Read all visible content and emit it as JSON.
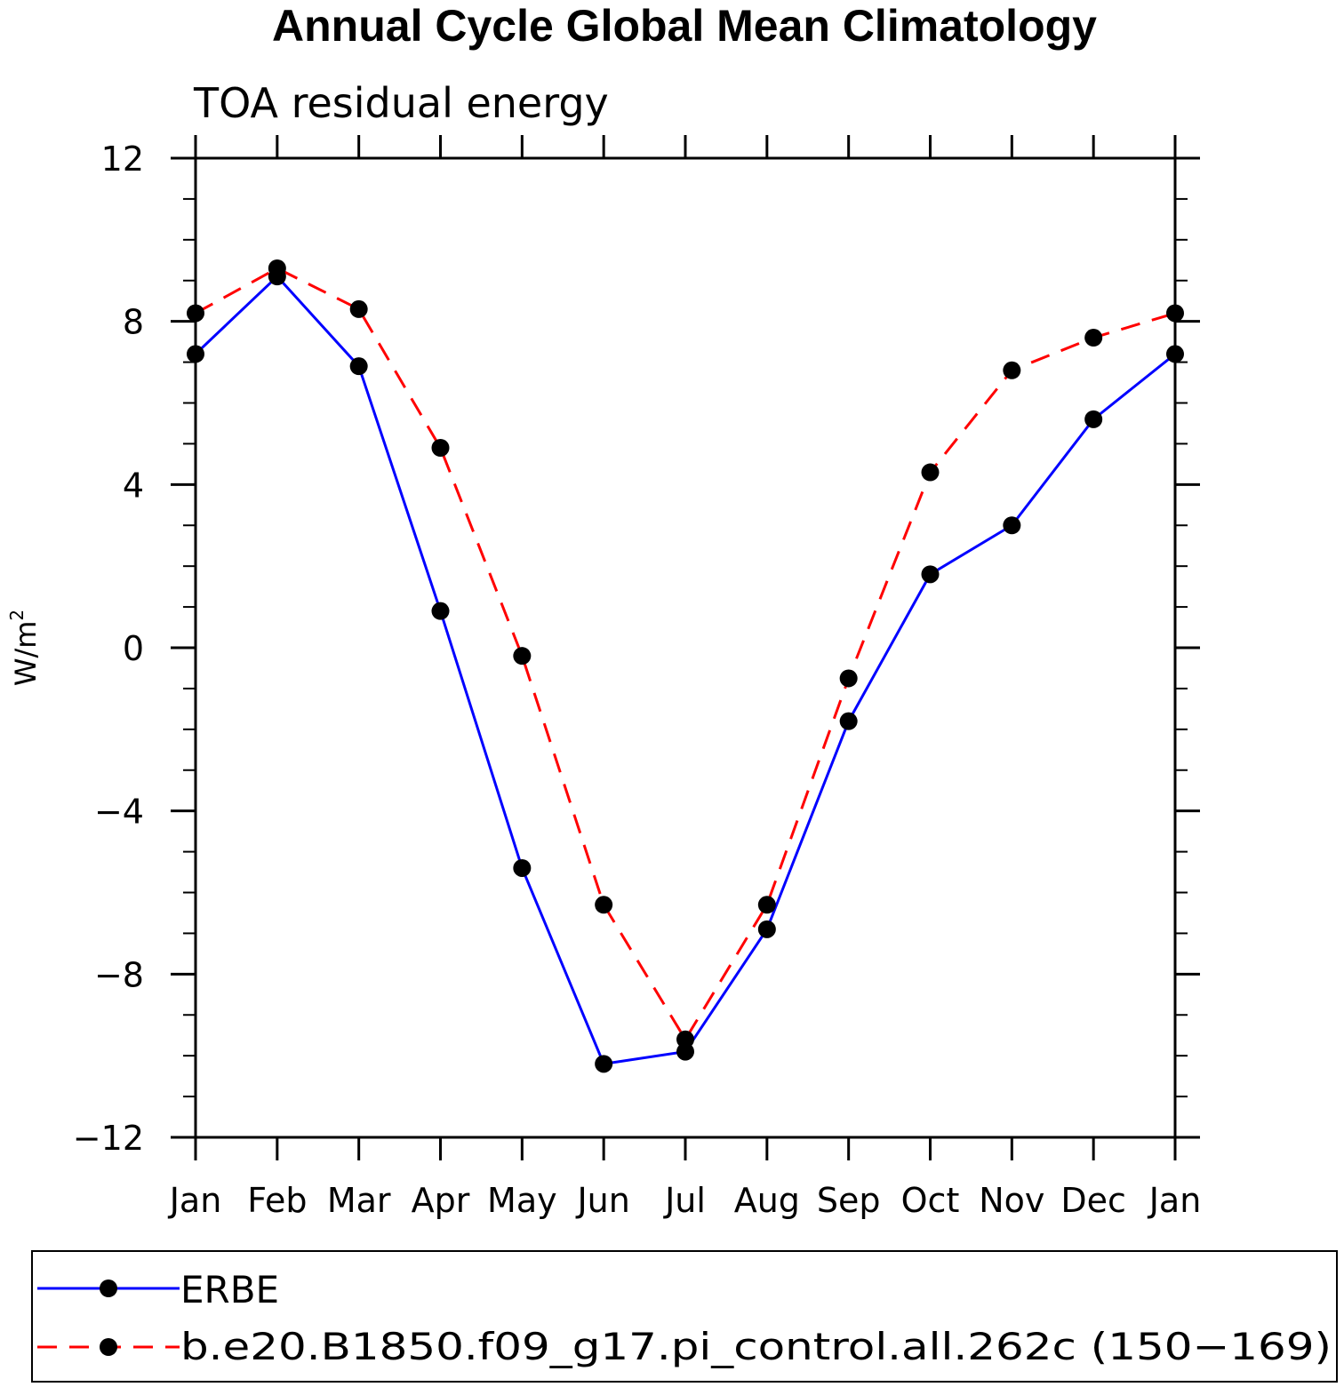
{
  "chart_data": {
    "type": "line",
    "title": "Annual Cycle Global Mean Climatology",
    "subtitle": "TOA residual energy",
    "ylabel_base": "W/m",
    "ylabel_sup": "2",
    "categories": [
      "Jan",
      "Feb",
      "Mar",
      "Apr",
      "May",
      "Jun",
      "Jul",
      "Aug",
      "Sep",
      "Oct",
      "Nov",
      "Dec",
      "Jan"
    ],
    "ylim": [
      -12,
      12
    ],
    "yticks": [
      "12",
      "8",
      "4",
      "0",
      "−4",
      "−8",
      "−12"
    ],
    "ytick_values": [
      12,
      8,
      4,
      0,
      -4,
      -8,
      -12
    ],
    "series": [
      {
        "name": "ERBE",
        "color": "#0000ff",
        "dash": "solid",
        "values": [
          7.2,
          9.1,
          6.9,
          0.9,
          -5.4,
          -10.2,
          -9.9,
          -6.9,
          -1.8,
          1.8,
          3.0,
          5.6,
          7.2
        ]
      },
      {
        "name": "b.e20.B1850.f09_g17.pi_control.all.262c (150−169)",
        "color": "#ff0000",
        "dash": "dashed",
        "values": [
          8.2,
          9.3,
          8.3,
          4.9,
          -0.2,
          -6.3,
          -9.6,
          -6.3,
          -0.75,
          4.3,
          6.8,
          7.6,
          8.2
        ]
      }
    ],
    "marker_color": "#000000",
    "legend_placement": "bottom"
  }
}
